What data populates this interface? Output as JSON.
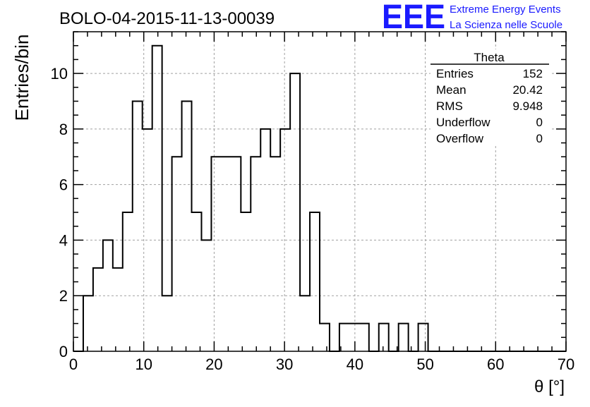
{
  "header": {
    "run_title": "BOLO-04-2015-11-13-00039",
    "logo_text": "EEE",
    "logo_line1": "Extreme Energy Events",
    "logo_line2": "La Scienza nelle Scuole"
  },
  "stats_box": {
    "title": "Theta",
    "rows": [
      {
        "label": "Entries",
        "value": "152"
      },
      {
        "label": "Mean",
        "value": "20.42"
      },
      {
        "label": "RMS",
        "value": "9.948"
      },
      {
        "label": "Underflow",
        "value": "0"
      },
      {
        "label": "Overflow",
        "value": "0"
      }
    ]
  },
  "chart_data": {
    "type": "histogram",
    "title": "BOLO-04-2015-11-13-00039",
    "xlabel": "θ [°]",
    "ylabel": "Entries/bin",
    "xlim": [
      0,
      70
    ],
    "ylim": [
      0,
      11.5
    ],
    "xticks": [
      0,
      10,
      20,
      30,
      40,
      50,
      60,
      70
    ],
    "yticks": [
      0,
      2,
      4,
      6,
      8,
      10
    ],
    "grid": true,
    "bin_width": 1.4,
    "bin_start": 0,
    "counts": [
      0,
      2,
      3,
      4,
      3,
      5,
      9,
      8,
      11,
      2,
      7,
      9,
      5,
      4,
      7,
      7,
      7,
      5,
      7,
      8,
      7,
      8,
      10,
      2,
      5,
      1,
      0,
      1,
      1,
      1,
      0,
      1,
      0,
      1,
      0,
      1,
      0,
      0,
      0,
      0,
      0,
      0,
      0,
      0,
      0,
      0,
      0,
      0,
      0,
      0
    ],
    "line_color": "#000000",
    "logo_color": "#1a1aff"
  }
}
